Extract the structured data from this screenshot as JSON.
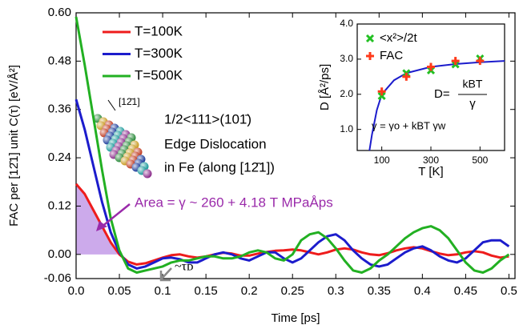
{
  "chart_data": [
    {
      "type": "line",
      "x_label": "Time [ps]",
      "y_label": "FAC per [12̄1] unit C(τ) [eV/Å²]",
      "xlim": [
        0,
        0.507
      ],
      "ylim": [
        -0.06,
        0.6
      ],
      "xticks": [
        {
          "value": 0,
          "label": "0.0"
        },
        0.05,
        0.1,
        0.15,
        0.2,
        0.25,
        0.3,
        0.35,
        0.4,
        0.45,
        0.5
      ],
      "yticks": [
        -0.06,
        {
          "value": 0,
          "label": "0.00"
        },
        0.12,
        0.24,
        0.36,
        0.48,
        {
          "value": 0.6,
          "label": "0.60"
        }
      ],
      "legend": "upper left",
      "x": [
        0,
        0.01,
        0.02,
        0.03,
        0.04,
        0.05,
        0.06,
        0.07,
        0.08,
        0.09,
        0.1,
        0.11,
        0.12,
        0.13,
        0.14,
        0.15,
        0.16,
        0.17,
        0.18,
        0.19,
        0.2,
        0.21,
        0.22,
        0.23,
        0.24,
        0.25,
        0.26,
        0.27,
        0.28,
        0.29,
        0.3,
        0.31,
        0.32,
        0.33,
        0.34,
        0.35,
        0.36,
        0.37,
        0.38,
        0.39,
        0.4,
        0.41,
        0.42,
        0.43,
        0.44,
        0.45,
        0.46,
        0.47,
        0.48,
        0.49,
        0.5
      ],
      "series": [
        {
          "name": "T=100K",
          "color": "#ee1c1c",
          "values": [
            0.175,
            0.15,
            0.11,
            0.07,
            0.03,
            0.0,
            -0.018,
            -0.025,
            -0.022,
            -0.015,
            -0.008,
            -0.002,
            0.0,
            -0.005,
            -0.008,
            -0.005,
            0.0,
            0.004,
            0.002,
            -0.003,
            -0.003,
            0.002,
            0.006,
            0.009,
            0.01,
            0.012,
            0.01,
            0.005,
            0.0,
            0.005,
            0.012,
            0.015,
            0.012,
            0.005,
            0.0,
            -0.002,
            0.003,
            0.01,
            0.015,
            0.018,
            0.015,
            0.008,
            0.002,
            -0.002,
            0.0,
            0.005,
            0.008,
            0.005,
            -0.003,
            -0.008,
            -0.005
          ]
        },
        {
          "name": "T=300K",
          "color": "#1c1ccc",
          "values": [
            0.385,
            0.31,
            0.22,
            0.13,
            0.055,
            0.005,
            -0.025,
            -0.035,
            -0.03,
            -0.02,
            -0.01,
            -0.008,
            -0.012,
            -0.02,
            -0.02,
            -0.01,
            0.0,
            0.005,
            0.0,
            -0.01,
            -0.015,
            -0.005,
            0.005,
            0.005,
            -0.01,
            -0.02,
            -0.01,
            0.01,
            0.03,
            0.045,
            0.05,
            0.035,
            0.01,
            -0.01,
            -0.025,
            -0.03,
            -0.025,
            -0.01,
            0.005,
            0.015,
            0.02,
            0.01,
            -0.005,
            -0.015,
            -0.02,
            -0.01,
            0.01,
            0.03,
            0.035,
            0.035,
            0.02
          ]
        },
        {
          "name": "T=500K",
          "color": "#22b022",
          "values": [
            0.59,
            0.47,
            0.34,
            0.21,
            0.09,
            0.01,
            -0.035,
            -0.045,
            -0.04,
            -0.035,
            -0.03,
            -0.02,
            -0.015,
            -0.015,
            -0.01,
            -0.005,
            -0.005,
            -0.01,
            -0.01,
            -0.005,
            0.005,
            0.01,
            0.005,
            -0.01,
            -0.015,
            0.0,
            0.035,
            0.05,
            0.055,
            0.04,
            0.015,
            -0.015,
            -0.04,
            -0.045,
            -0.035,
            -0.015,
            0.0,
            0.02,
            0.04,
            0.055,
            0.065,
            0.07,
            0.06,
            0.04,
            0.01,
            -0.02,
            -0.04,
            -0.045,
            -0.035,
            -0.015,
            0.0
          ]
        }
      ],
      "area_color": "#c39be8",
      "annotations": {
        "area": "Area = γ ~ 260 + 4.18 T  MPaÅps",
        "tau": "~τᴅ",
        "dislocation_1": "1/2<111>(101̄)",
        "dislocation_2": "Edge Dislocation",
        "dislocation_3": "in Fe (along [12̄1])",
        "direction": "[12̄1]"
      }
    },
    {
      "type": "scatter",
      "x_label": "T [K]",
      "y_label": "D [Å²/ps]",
      "xlim": [
        0,
        600
      ],
      "ylim": [
        0.4,
        4.0
      ],
      "xticks": [
        100,
        300,
        500
      ],
      "yticks": [
        {
          "value": 1,
          "label": "1.0"
        },
        {
          "value": 2,
          "label": "2.0"
        },
        {
          "value": 3,
          "label": "3.0"
        },
        {
          "value": 4,
          "label": "4.0"
        }
      ],
      "x": [
        100,
        200,
        300,
        400,
        500
      ],
      "series": [
        {
          "name": "<x²>/2t",
          "color": "#22c022",
          "marker": "x",
          "values": [
            1.95,
            2.6,
            2.68,
            2.85,
            3.02
          ]
        },
        {
          "name": "FAC",
          "color": "#ff3a1a",
          "marker": "+",
          "values": [
            2.08,
            2.5,
            2.78,
            2.95,
            2.95
          ]
        }
      ],
      "fit": {
        "color": "#1c1ccc",
        "x": [
          50,
          60,
          80,
          100,
          150,
          200,
          300,
          400,
          500,
          600
        ],
        "values": [
          0.4,
          0.85,
          1.55,
          2.0,
          2.4,
          2.6,
          2.78,
          2.86,
          2.91,
          2.95
        ]
      },
      "formula_D": {
        "lhs": "D=",
        "numerator": "kBT",
        "denominator": "γ"
      },
      "formula_gamma": "γ = γo + kBT γw"
    }
  ]
}
